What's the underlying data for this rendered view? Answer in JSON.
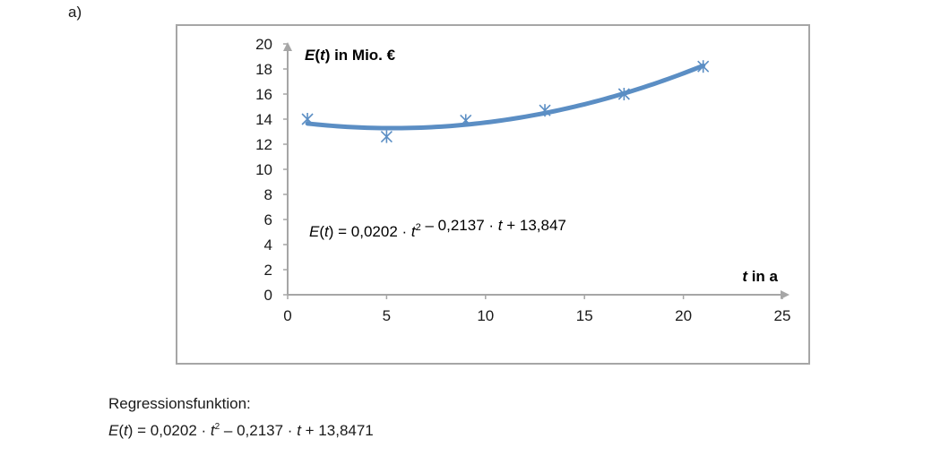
{
  "part_label": "a)",
  "chart_data": {
    "type": "scatter",
    "title": "",
    "xlabel": "t in a",
    "ylabel": "E(t) in Mio. €",
    "xlim": [
      0,
      25
    ],
    "ylim": [
      0,
      20
    ],
    "x_ticks": [
      0,
      5,
      10,
      15,
      20,
      25
    ],
    "y_ticks": [
      0,
      2,
      4,
      6,
      8,
      10,
      12,
      14,
      16,
      18,
      20
    ],
    "grid": false,
    "colors": {
      "series": "#5b8ec4",
      "axis": "#a6a6a6"
    },
    "series": [
      {
        "x": [
          1,
          5,
          9,
          13,
          17,
          21
        ],
        "y": [
          14,
          12.6,
          13.9,
          14.7,
          16.0,
          18.2
        ]
      }
    ],
    "trendline": {
      "type": "polynomial",
      "coefficients": [
        0.0202,
        -0.2137,
        13.847
      ],
      "x_range": [
        1,
        21
      ],
      "equation": {
        "lhs": "E(t)",
        "text": "E(t) = 0,0202 · t2 – 0,2137 · t + 13,847"
      }
    }
  },
  "caption": {
    "heading": "Regressionsfunktion:",
    "equation": "E(t) = 0,0202 · t2 – 0,2137 · t + 13,8471"
  }
}
